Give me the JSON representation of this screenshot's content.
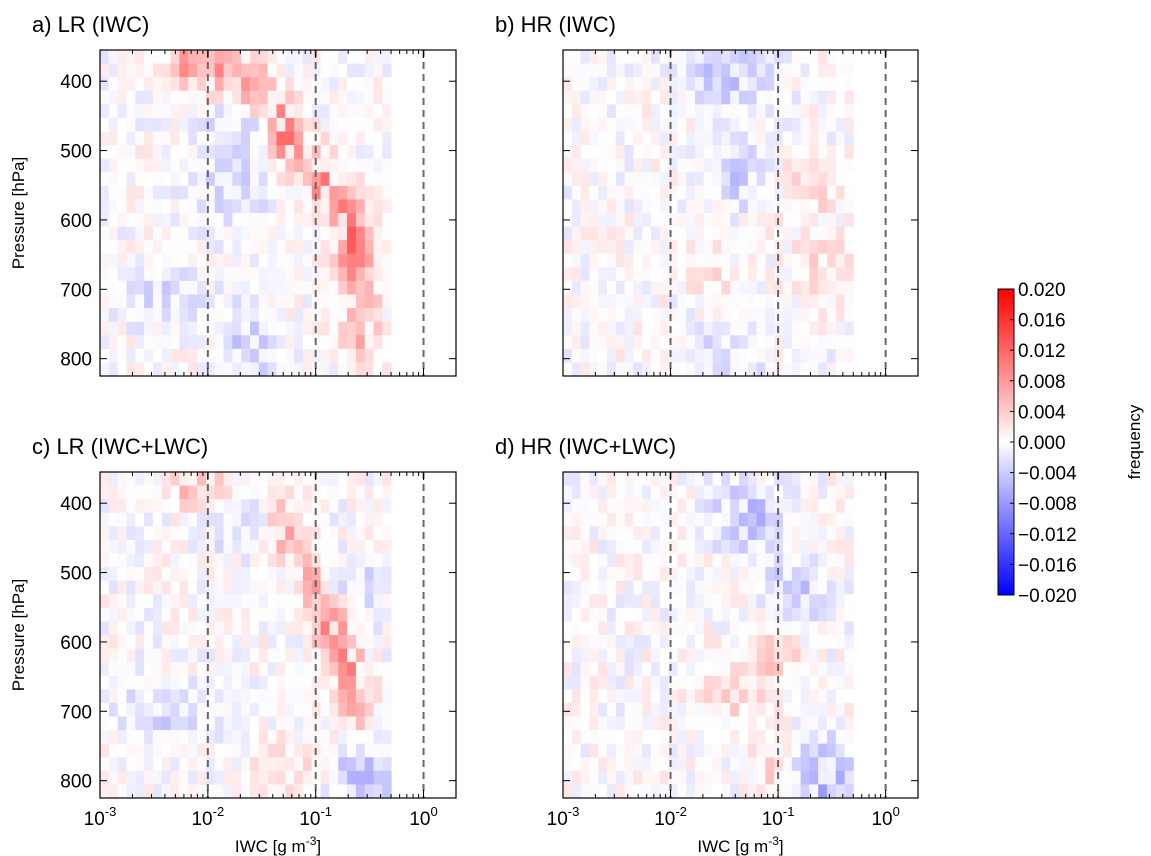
{
  "chart_data": [
    {
      "type": "heatmap",
      "title": "a) LR (IWC)",
      "ylabel": "Pressure [hPa]",
      "xlabel": "",
      "x_scale": "log",
      "xlim": [
        0.001,
        2
      ],
      "ylim": [
        825,
        355
      ],
      "y_ticks": [
        400,
        500,
        600,
        700,
        800
      ],
      "x_ticks": [],
      "x_tick_labels": [],
      "ref_lines_x": [
        0.01,
        0.1,
        1
      ],
      "bins": {
        "x_bins": 33,
        "y_bins": 24,
        "x_from_log10": -3.0,
        "x_to_log10": -0.3
      },
      "signal": [
        {
          "x_center_log10": -2.2,
          "y_center": 360,
          "width": 0.12,
          "value": 0.01
        },
        {
          "x_center_log10": -1.9,
          "y_center": 380,
          "width": 0.14,
          "value": 0.008
        },
        {
          "x_center_log10": -1.6,
          "y_center": 410,
          "width": 0.14,
          "value": 0.01
        },
        {
          "x_center_log10": -1.35,
          "y_center": 460,
          "width": 0.12,
          "value": 0.012
        },
        {
          "x_center_log10": -1.2,
          "y_center": 490,
          "width": 0.12,
          "value": 0.01
        },
        {
          "x_center_log10": -0.95,
          "y_center": 540,
          "width": 0.14,
          "value": 0.01
        },
        {
          "x_center_log10": -0.72,
          "y_center": 600,
          "width": 0.14,
          "value": 0.012
        },
        {
          "x_center_log10": -0.62,
          "y_center": 660,
          "width": 0.16,
          "value": 0.008
        },
        {
          "x_center_log10": -0.58,
          "y_center": 730,
          "width": 0.18,
          "value": 0.005
        },
        {
          "x_center_log10": -0.58,
          "y_center": 790,
          "width": 0.18,
          "value": 0.004
        }
      ],
      "negative_regions": [
        {
          "x_center_log10": -1.7,
          "y_center": 460,
          "width": 0.35,
          "value": -0.005
        },
        {
          "x_center_log10": -1.75,
          "y_center": 560,
          "width": 0.3,
          "value": -0.004
        },
        {
          "x_center_log10": -1.6,
          "y_center": 780,
          "width": 0.25,
          "value": -0.005
        },
        {
          "x_center_log10": -2.4,
          "y_center": 710,
          "width": 0.4,
          "value": -0.003
        }
      ]
    },
    {
      "type": "heatmap",
      "title": "b) HR (IWC)",
      "ylabel": "",
      "xlabel": "",
      "x_scale": "log",
      "xlim": [
        0.001,
        2
      ],
      "ylim": [
        825,
        355
      ],
      "y_ticks": [],
      "x_ticks": [],
      "x_tick_labels": [],
      "ref_lines_x": [
        0.01,
        0.1,
        1
      ],
      "bins": {
        "x_bins": 33,
        "y_bins": 24,
        "x_from_log10": -3.0,
        "x_to_log10": -0.3
      },
      "signal": [
        {
          "x_center_log10": -0.75,
          "y_center": 560,
          "width": 0.35,
          "value": 0.003
        },
        {
          "x_center_log10": -0.55,
          "y_center": 670,
          "width": 0.35,
          "value": 0.003
        },
        {
          "x_center_log10": -1.6,
          "y_center": 680,
          "width": 0.3,
          "value": 0.002
        }
      ],
      "negative_regions": [
        {
          "x_center_log10": -1.45,
          "y_center": 390,
          "width": 0.35,
          "value": -0.005
        },
        {
          "x_center_log10": -1.35,
          "y_center": 540,
          "width": 0.3,
          "value": -0.004
        },
        {
          "x_center_log10": -1.5,
          "y_center": 790,
          "width": 0.35,
          "value": -0.003
        }
      ]
    },
    {
      "type": "heatmap",
      "title": "c) LR (IWC+LWC)",
      "ylabel": "Pressure [hPa]",
      "xlabel": "IWC [g m-3]",
      "x_scale": "log",
      "xlim": [
        0.001,
        2
      ],
      "ylim": [
        825,
        355
      ],
      "y_ticks": [
        400,
        500,
        600,
        700,
        800
      ],
      "x_ticks": [
        0.001,
        0.01,
        0.1,
        1
      ],
      "x_tick_labels": [
        {
          "base": "10",
          "exp": "-3"
        },
        {
          "base": "10",
          "exp": "-2"
        },
        {
          "base": "10",
          "exp": "-1"
        },
        {
          "base": "10",
          "exp": "0"
        }
      ],
      "ref_lines_x": [
        0.01,
        0.1,
        1
      ],
      "bins": {
        "x_bins": 33,
        "y_bins": 24,
        "x_from_log10": -3.0,
        "x_to_log10": -0.3
      },
      "signal": [
        {
          "x_center_log10": -2.2,
          "y_center": 360,
          "width": 0.12,
          "value": 0.008
        },
        {
          "x_center_log10": -1.9,
          "y_center": 380,
          "width": 0.16,
          "value": 0.005
        },
        {
          "x_center_log10": -1.3,
          "y_center": 440,
          "width": 0.14,
          "value": 0.007
        },
        {
          "x_center_log10": -1.05,
          "y_center": 510,
          "width": 0.12,
          "value": 0.008
        },
        {
          "x_center_log10": -0.85,
          "y_center": 580,
          "width": 0.14,
          "value": 0.01
        },
        {
          "x_center_log10": -0.7,
          "y_center": 640,
          "width": 0.14,
          "value": 0.008
        },
        {
          "x_center_log10": -0.62,
          "y_center": 700,
          "width": 0.18,
          "value": 0.005
        },
        {
          "x_center_log10": -1.25,
          "y_center": 790,
          "width": 0.25,
          "value": 0.004
        }
      ],
      "negative_regions": [
        {
          "x_center_log10": -1.75,
          "y_center": 420,
          "width": 0.3,
          "value": -0.004
        },
        {
          "x_center_log10": -0.6,
          "y_center": 520,
          "width": 0.3,
          "value": -0.003
        },
        {
          "x_center_log10": -0.55,
          "y_center": 790,
          "width": 0.3,
          "value": -0.005
        },
        {
          "x_center_log10": -2.4,
          "y_center": 700,
          "width": 0.4,
          "value": -0.003
        }
      ]
    },
    {
      "type": "heatmap",
      "title": "d) HR (IWC+LWC)",
      "ylabel": "",
      "xlabel": "IWC [g m-3]",
      "x_scale": "log",
      "xlim": [
        0.001,
        2
      ],
      "ylim": [
        825,
        355
      ],
      "y_ticks": [],
      "x_ticks": [
        0.001,
        0.01,
        0.1,
        1
      ],
      "x_tick_labels": [
        {
          "base": "10",
          "exp": "-3"
        },
        {
          "base": "10",
          "exp": "-2"
        },
        {
          "base": "10",
          "exp": "-1"
        },
        {
          "base": "10",
          "exp": "0"
        }
      ],
      "ref_lines_x": [
        0.01,
        0.1,
        1
      ],
      "bins": {
        "x_bins": 33,
        "y_bins": 24,
        "x_from_log10": -3.0,
        "x_to_log10": -0.3
      },
      "signal": [
        {
          "x_center_log10": -1.5,
          "y_center": 680,
          "width": 0.35,
          "value": 0.003
        },
        {
          "x_center_log10": -1.05,
          "y_center": 620,
          "width": 0.25,
          "value": 0.004
        },
        {
          "x_center_log10": -1.0,
          "y_center": 790,
          "width": 0.2,
          "value": 0.004
        }
      ],
      "negative_regions": [
        {
          "x_center_log10": -1.3,
          "y_center": 420,
          "width": 0.3,
          "value": -0.006
        },
        {
          "x_center_log10": -0.85,
          "y_center": 530,
          "width": 0.25,
          "value": -0.005
        },
        {
          "x_center_log10": -0.6,
          "y_center": 790,
          "width": 0.3,
          "value": -0.008
        }
      ]
    }
  ],
  "colorbar": {
    "label": "frequency",
    "range": [
      -0.02,
      0.02
    ],
    "colormap": "bwr",
    "ticks": [
      0.02,
      0.016,
      0.012,
      0.008,
      0.004,
      0.0,
      -0.004,
      -0.008,
      -0.012,
      -0.016,
      -0.02
    ],
    "tick_labels": [
      "0.020",
      "0.016",
      "0.012",
      "0.008",
      "0.004",
      "0.000",
      "−0.004",
      "−0.008",
      "−0.012",
      "−0.016",
      "−0.020"
    ]
  },
  "colors": {
    "negative": "#0000ff",
    "zero": "#ffffff",
    "positive": "#ff0000",
    "ref_line": "#666666",
    "axes": "#000000"
  }
}
